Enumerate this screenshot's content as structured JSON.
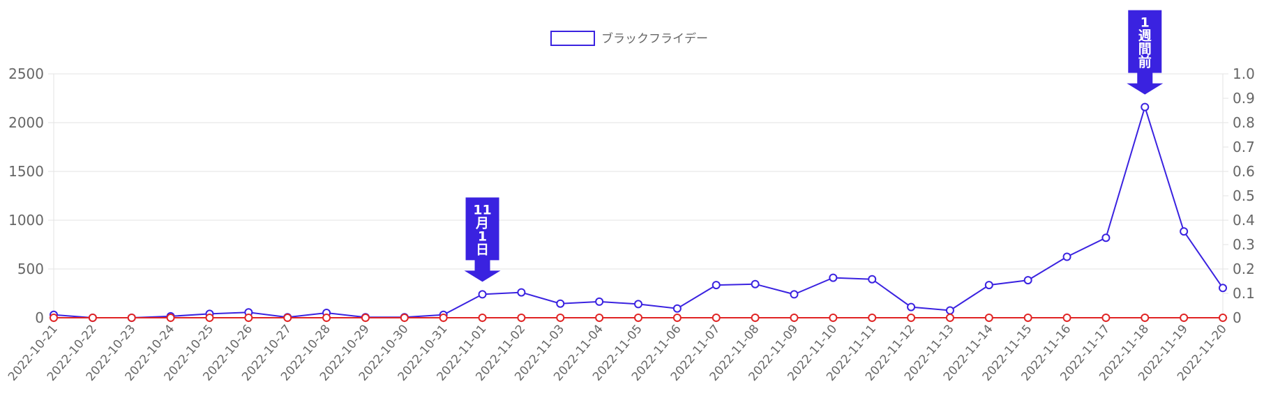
{
  "chart_data": {
    "type": "line",
    "x": [
      "2022-10-21",
      "2022-10-22",
      "2022-10-23",
      "2022-10-24",
      "2022-10-25",
      "2022-10-26",
      "2022-10-27",
      "2022-10-28",
      "2022-10-29",
      "2022-10-30",
      "2022-10-31",
      "2022-11-01",
      "2022-11-02",
      "2022-11-03",
      "2022-11-04",
      "2022-11-05",
      "2022-11-06",
      "2022-11-07",
      "2022-11-08",
      "2022-11-09",
      "2022-11-10",
      "2022-11-11",
      "2022-11-12",
      "2022-11-13",
      "2022-11-14",
      "2022-11-15",
      "2022-11-16",
      "2022-11-17",
      "2022-11-18",
      "2022-11-19",
      "2022-11-20"
    ],
    "series": [
      {
        "name": "ブラックフライデー",
        "axis": "left",
        "color": "#3a22e0",
        "values": [
          30,
          0,
          0,
          15,
          40,
          55,
          5,
          50,
          5,
          5,
          30,
          240,
          260,
          145,
          165,
          140,
          95,
          335,
          345,
          240,
          410,
          395,
          110,
          75,
          335,
          385,
          625,
          820,
          2160,
          885,
          305
        ]
      },
      {
        "name": "",
        "axis": "right",
        "color": "#e02424",
        "values": [
          0,
          0,
          0,
          0,
          0,
          0,
          0,
          0,
          0,
          0,
          0,
          0,
          0,
          0,
          0,
          0,
          0,
          0,
          0,
          0,
          0,
          0,
          0,
          0,
          0,
          0,
          0,
          0,
          0,
          0,
          0
        ]
      }
    ],
    "y_left": {
      "ylim": [
        0,
        2500
      ],
      "ticks": [
        0,
        500,
        1000,
        1500,
        2000,
        2500
      ]
    },
    "y_right": {
      "ylim": [
        0,
        1.0
      ],
      "ticks": [
        "0",
        "0.1",
        "0.2",
        "0.3",
        "0.4",
        "0.5",
        "0.6",
        "0.7",
        "0.8",
        "0.9",
        "1.0"
      ]
    },
    "grid": true,
    "legend": {
      "position": "top",
      "entries": [
        "ブラックフライデー"
      ]
    },
    "annotations": [
      {
        "x": "2022-11-01",
        "label_lines": [
          "11",
          "月",
          "1",
          "日"
        ],
        "color": "#3a22e0"
      },
      {
        "x": "2022-11-18",
        "label_lines": [
          "1",
          "週",
          "間",
          "前"
        ],
        "color": "#3a22e0"
      }
    ]
  }
}
